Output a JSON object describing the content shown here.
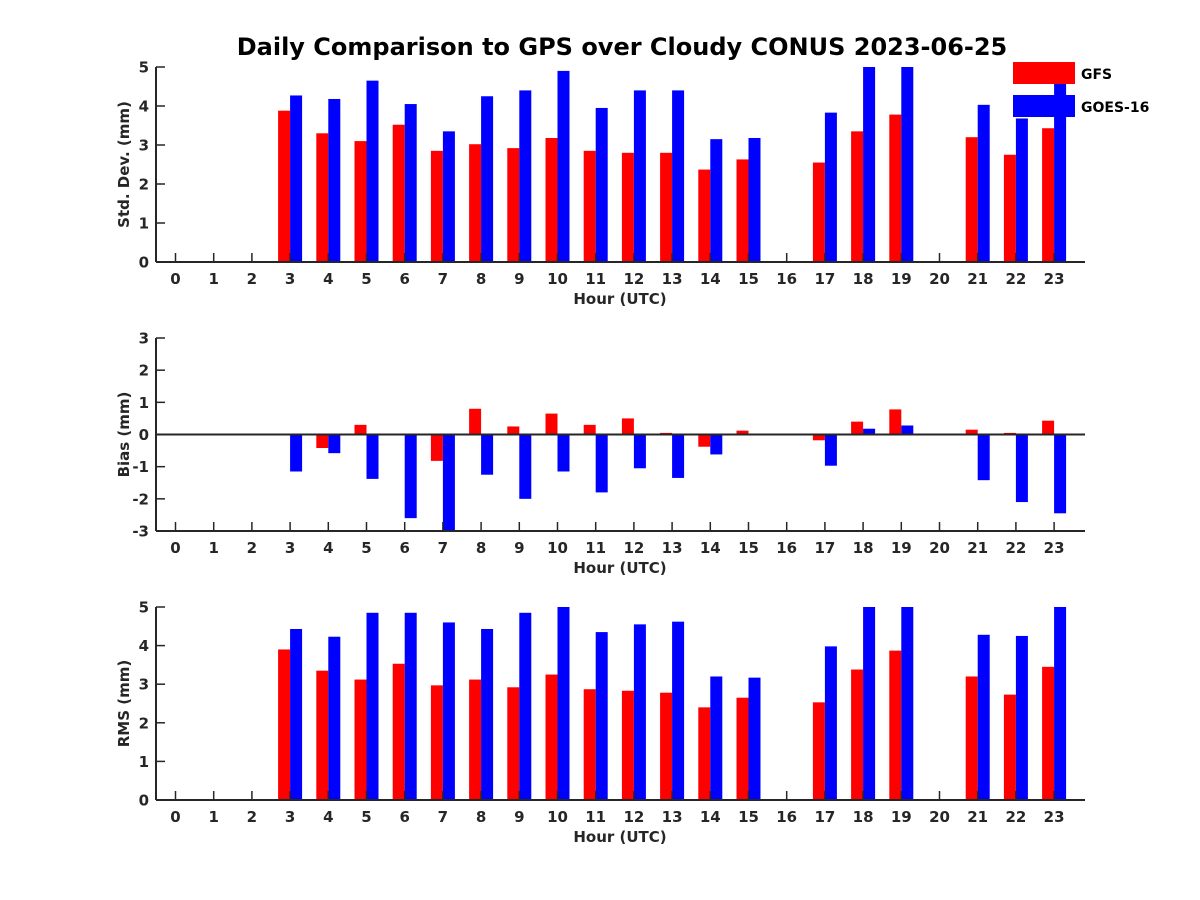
{
  "title": "Daily Comparison to GPS over Cloudy CONUS 2023-06-25",
  "colors": {
    "GFS": "#ff0000",
    "GOES-16": "#0000ff"
  },
  "legend": {
    "placement": "top-right",
    "entries": [
      "GFS",
      "GOES-16"
    ]
  },
  "chart_data": [
    {
      "type": "bar",
      "xlabel": "Hour (UTC)",
      "ylabel": "Std. Dev. (mm)",
      "ylim": [
        0,
        5
      ],
      "yticks": [
        "0",
        "1",
        "2",
        "3",
        "4",
        "5"
      ],
      "categories": [
        "0",
        "1",
        "2",
        "3",
        "4",
        "5",
        "6",
        "7",
        "8",
        "9",
        "10",
        "11",
        "12",
        "13",
        "14",
        "15",
        "16",
        "17",
        "18",
        "19",
        "20",
        "21",
        "22",
        "23"
      ],
      "series": [
        {
          "name": "GFS",
          "values": [
            null,
            null,
            null,
            3.88,
            3.3,
            3.1,
            3.52,
            2.85,
            3.02,
            2.92,
            3.18,
            2.85,
            2.8,
            2.8,
            2.37,
            2.63,
            null,
            2.55,
            3.35,
            3.78,
            null,
            3.2,
            2.75,
            3.43
          ]
        },
        {
          "name": "GOES-16",
          "values": [
            null,
            null,
            null,
            4.27,
            4.18,
            4.65,
            4.05,
            3.35,
            4.25,
            4.4,
            4.9,
            3.95,
            4.4,
            4.4,
            3.15,
            3.18,
            null,
            3.83,
            5.0,
            5.0,
            null,
            4.03,
            3.68,
            4.6
          ]
        }
      ]
    },
    {
      "type": "bar",
      "xlabel": "Hour (UTC)",
      "ylabel": "Bias (mm)",
      "ylim": [
        -3,
        3
      ],
      "yticks": [
        "-3",
        "-2",
        "-1",
        "0",
        "1",
        "2",
        "3"
      ],
      "categories": [
        "0",
        "1",
        "2",
        "3",
        "4",
        "5",
        "6",
        "7",
        "8",
        "9",
        "10",
        "11",
        "12",
        "13",
        "14",
        "15",
        "16",
        "17",
        "18",
        "19",
        "20",
        "21",
        "22",
        "23"
      ],
      "series": [
        {
          "name": "GFS",
          "values": [
            null,
            null,
            null,
            0.0,
            -0.42,
            0.3,
            0.03,
            -0.82,
            0.8,
            0.25,
            0.65,
            0.3,
            0.5,
            0.05,
            -0.38,
            0.12,
            null,
            -0.18,
            0.4,
            0.78,
            null,
            0.15,
            0.05,
            0.43
          ]
        },
        {
          "name": "GOES-16",
          "values": [
            null,
            null,
            null,
            -1.15,
            -0.58,
            -1.38,
            -2.6,
            -3.0,
            -1.25,
            -2.0,
            -1.15,
            -1.8,
            -1.05,
            -1.35,
            -0.62,
            0.0,
            null,
            -0.97,
            0.18,
            0.28,
            null,
            -1.42,
            -2.1,
            -2.45
          ]
        }
      ]
    },
    {
      "type": "bar",
      "xlabel": "Hour (UTC)",
      "ylabel": "RMS (mm)",
      "ylim": [
        0,
        5
      ],
      "yticks": [
        "0",
        "1",
        "2",
        "3",
        "4",
        "5"
      ],
      "categories": [
        "0",
        "1",
        "2",
        "3",
        "4",
        "5",
        "6",
        "7",
        "8",
        "9",
        "10",
        "11",
        "12",
        "13",
        "14",
        "15",
        "16",
        "17",
        "18",
        "19",
        "20",
        "21",
        "22",
        "23"
      ],
      "series": [
        {
          "name": "GFS",
          "values": [
            null,
            null,
            null,
            3.9,
            3.35,
            3.12,
            3.53,
            2.97,
            3.12,
            2.92,
            3.25,
            2.87,
            2.83,
            2.78,
            2.4,
            2.65,
            null,
            2.53,
            3.38,
            3.87,
            null,
            3.2,
            2.73,
            3.45
          ]
        },
        {
          "name": "GOES-16",
          "values": [
            null,
            null,
            null,
            4.43,
            4.23,
            4.85,
            4.85,
            4.6,
            4.43,
            4.85,
            5.0,
            4.35,
            4.55,
            4.62,
            3.2,
            3.17,
            null,
            3.98,
            5.0,
            5.0,
            null,
            4.28,
            4.25,
            5.0
          ]
        }
      ]
    }
  ]
}
